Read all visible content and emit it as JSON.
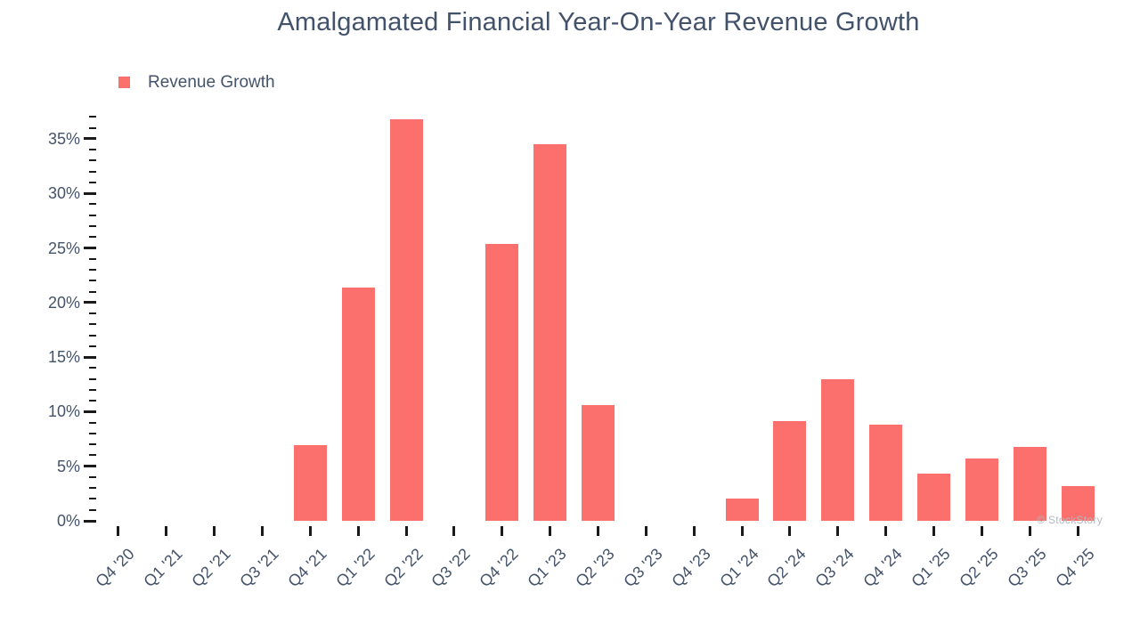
{
  "title": "Amalgamated Financial Year-On-Year Revenue Growth",
  "legend": {
    "label": "Revenue Growth"
  },
  "watermark": "© StockStory",
  "colors": {
    "bar": "#fb6f6c",
    "title_text": "#42526b",
    "axis_text": "#44536a",
    "tick": "#1a1a1a",
    "watermark_text": "#b3b9c1"
  },
  "chart_data": {
    "type": "bar",
    "title": "Amalgamated Financial Year-On-Year Revenue Growth",
    "categories": [
      "Q4 '20",
      "Q1 '21",
      "Q2 '21",
      "Q3 '21",
      "Q4 '21",
      "Q1 '22",
      "Q2 '22",
      "Q3 '22",
      "Q4 '22",
      "Q1 '23",
      "Q2 '23",
      "Q3 '23",
      "Q4 '23",
      "Q1 '24",
      "Q2 '24",
      "Q3 '24",
      "Q4 '24",
      "Q1 '25",
      "Q2 '25",
      "Q3 '25",
      "Q4 '25"
    ],
    "series": [
      {
        "name": "Revenue Growth",
        "values": [
          null,
          null,
          null,
          null,
          6.9,
          21.4,
          36.8,
          null,
          25.4,
          34.5,
          10.6,
          null,
          null,
          2.0,
          9.1,
          13.0,
          8.8,
          4.3,
          5.7,
          6.8,
          3.2
        ]
      }
    ],
    "value_unit": "%",
    "xlabel": "",
    "ylabel": "",
    "ytick_labels": [
      "0%",
      "5%",
      "10%",
      "15%",
      "20%",
      "25%",
      "30%",
      "35%"
    ],
    "ylim": [
      0,
      37.5
    ],
    "y_major_step": 5,
    "y_minor_step": 1,
    "grid": false,
    "legend_position": "top-left"
  }
}
